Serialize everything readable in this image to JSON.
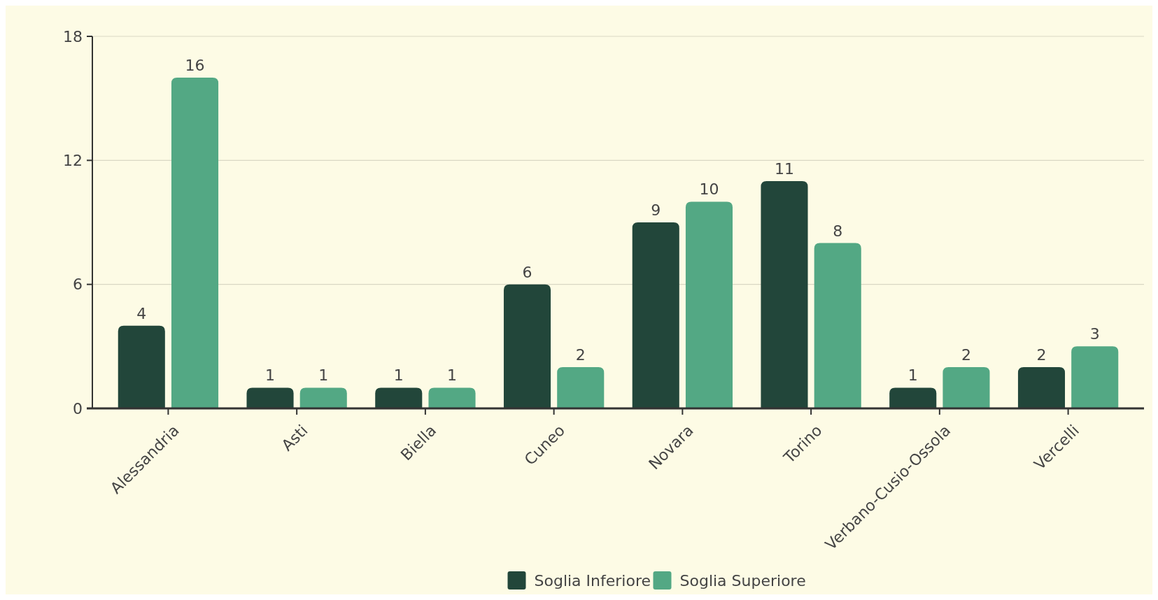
{
  "chart_data": {
    "type": "bar",
    "categories": [
      "Alessandria",
      "Asti",
      "Biella",
      "Cuneo",
      "Novara",
      "Torino",
      "Verbano-Cusio-Ossola",
      "Vercelli"
    ],
    "series": [
      {
        "name": "Soglia Inferiore",
        "color": "#22463a",
        "values": [
          4,
          1,
          1,
          6,
          9,
          11,
          1,
          2
        ]
      },
      {
        "name": "Soglia Superiore",
        "color": "#53a884",
        "values": [
          16,
          1,
          1,
          2,
          10,
          8,
          2,
          3
        ]
      }
    ],
    "ylim": [
      0,
      18
    ],
    "yticks": [
      0,
      6,
      12,
      18
    ],
    "grid": "y",
    "legend": "bottom",
    "data_labels": true
  }
}
